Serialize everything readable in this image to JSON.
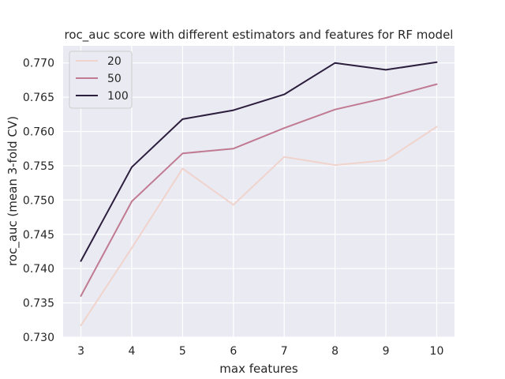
{
  "chart_data": {
    "type": "line",
    "title": "roc_auc score with different estimators and features for RF model",
    "xlabel": "max features",
    "ylabel": "roc_auc (mean 3-fold CV)",
    "x": [
      3,
      4,
      5,
      6,
      7,
      8,
      9,
      10
    ],
    "xlim": [
      2.65,
      10.35
    ],
    "ylim": [
      0.73,
      0.7725
    ],
    "yticks": [
      0.73,
      0.735,
      0.74,
      0.745,
      0.75,
      0.755,
      0.76,
      0.765,
      0.77
    ],
    "ytick_labels": [
      "0.730",
      "0.735",
      "0.740",
      "0.745",
      "0.750",
      "0.755",
      "0.760",
      "0.765",
      "0.770"
    ],
    "xtick_labels": [
      "3",
      "4",
      "5",
      "6",
      "7",
      "8",
      "9",
      "10"
    ],
    "grid": true,
    "legend_position": "top-left",
    "series": [
      {
        "name": "20",
        "color": "#f0d3cc",
        "values": [
          0.7317,
          0.743,
          0.7546,
          0.7493,
          0.7563,
          0.7551,
          0.7558,
          0.7607
        ]
      },
      {
        "name": "50",
        "color": "#c07a91",
        "values": [
          0.736,
          0.7498,
          0.7568,
          0.7575,
          0.7605,
          0.7632,
          0.7649,
          0.7669
        ]
      },
      {
        "name": "100",
        "color": "#2c1e3d",
        "values": [
          0.7411,
          0.7548,
          0.7618,
          0.7631,
          0.7654,
          0.77,
          0.769,
          0.7701
        ]
      }
    ],
    "colors": {
      "background": "#eaeaf2",
      "grid": "#ffffff"
    }
  }
}
